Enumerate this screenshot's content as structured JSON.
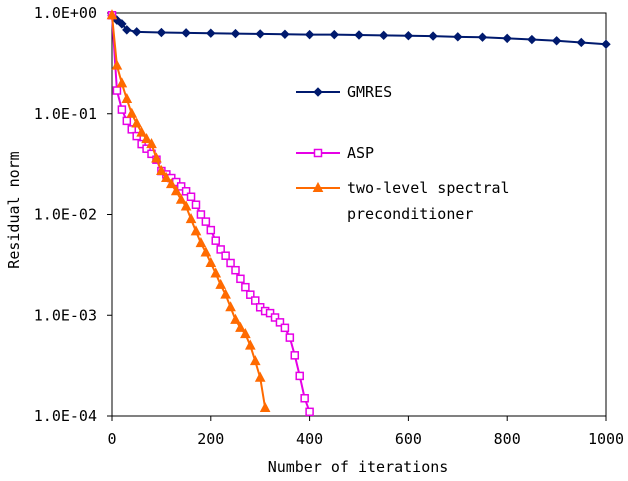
{
  "chart_data": {
    "type": "line",
    "title": "",
    "xlabel": "Number of iterations",
    "ylabel": "Residual norm",
    "xlim": [
      0,
      1000
    ],
    "ylim": [
      0.0001,
      1
    ],
    "yscale": "log",
    "grid": false,
    "legend_position": "inside-right",
    "x_ticks": [
      0,
      200,
      400,
      600,
      800,
      1000
    ],
    "x_tick_labels": [
      "0",
      "200",
      "400",
      "600",
      "800",
      "1000"
    ],
    "y_ticks": [
      1,
      0.1,
      0.01,
      0.001,
      0.0001
    ],
    "y_tick_labels": [
      "1.0E+00",
      "1.0E-01",
      "1.0E-02",
      "1.0E-03",
      "1.0E-04"
    ],
    "series": [
      {
        "name": "GMRES",
        "color": "#001a6e",
        "marker": "diamond",
        "x": [
          0,
          10,
          20,
          30,
          50,
          100,
          150,
          200,
          250,
          300,
          350,
          400,
          450,
          500,
          550,
          600,
          650,
          700,
          750,
          800,
          850,
          900,
          950,
          1000
        ],
        "y": [
          0.95,
          0.85,
          0.78,
          0.68,
          0.65,
          0.64,
          0.635,
          0.63,
          0.625,
          0.62,
          0.615,
          0.61,
          0.61,
          0.605,
          0.6,
          0.595,
          0.59,
          0.58,
          0.575,
          0.56,
          0.545,
          0.53,
          0.51,
          0.49
        ]
      },
      {
        "name": "ASP",
        "color": "#e600e6",
        "marker": "square",
        "x": [
          0,
          10,
          20,
          30,
          40,
          50,
          60,
          70,
          80,
          90,
          100,
          110,
          120,
          130,
          140,
          150,
          160,
          170,
          180,
          190,
          200,
          210,
          220,
          230,
          240,
          250,
          260,
          270,
          280,
          290,
          300,
          310,
          320,
          330,
          340,
          350,
          360,
          370,
          380,
          390,
          400
        ],
        "y": [
          0.95,
          0.17,
          0.11,
          0.085,
          0.07,
          0.06,
          0.05,
          0.045,
          0.04,
          0.035,
          0.027,
          0.025,
          0.023,
          0.021,
          0.019,
          0.017,
          0.015,
          0.0125,
          0.01,
          0.0085,
          0.007,
          0.0055,
          0.0045,
          0.0039,
          0.0033,
          0.0028,
          0.0023,
          0.0019,
          0.0016,
          0.0014,
          0.0012,
          0.0011,
          0.00105,
          0.00095,
          0.00085,
          0.00075,
          0.0006,
          0.0004,
          0.00025,
          0.00015,
          0.00011
        ]
      },
      {
        "name": "two-level spectral preconditioner",
        "color": "#ff6a00",
        "marker": "triangle",
        "x": [
          0,
          10,
          20,
          30,
          40,
          50,
          60,
          70,
          80,
          90,
          100,
          110,
          120,
          130,
          140,
          150,
          160,
          170,
          180,
          190,
          200,
          210,
          220,
          230,
          240,
          250,
          260,
          270,
          280,
          290,
          300,
          310
        ],
        "y": [
          0.95,
          0.3,
          0.2,
          0.14,
          0.1,
          0.08,
          0.065,
          0.056,
          0.05,
          0.036,
          0.027,
          0.023,
          0.02,
          0.017,
          0.014,
          0.012,
          0.009,
          0.0068,
          0.0052,
          0.0042,
          0.0033,
          0.0026,
          0.002,
          0.0016,
          0.0012,
          0.0009,
          0.00075,
          0.00065,
          0.0005,
          0.00035,
          0.00024,
          0.00012
        ]
      }
    ]
  }
}
